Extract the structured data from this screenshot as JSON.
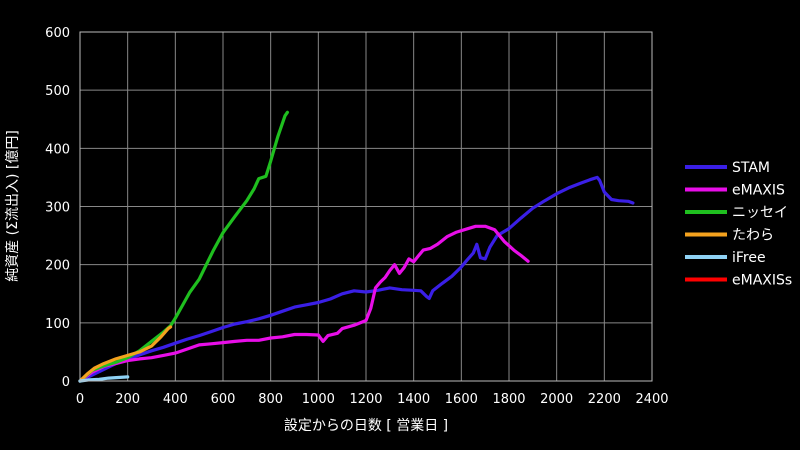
{
  "chart_data": {
    "type": "line",
    "title": "",
    "xlabel": "設定からの日数 [ 営業日 ]",
    "ylabel": "純資産 (Σ流出入) [億円]",
    "xlim": [
      0,
      2400
    ],
    "ylim": [
      0,
      600
    ],
    "xticks": [
      0,
      200,
      400,
      600,
      800,
      1000,
      1200,
      1400,
      1600,
      1800,
      2000,
      2200,
      2400
    ],
    "yticks": [
      0,
      100,
      200,
      300,
      400,
      500,
      600
    ],
    "grid": true,
    "legend_position": "right",
    "series": [
      {
        "name": "STAM",
        "color": "#3a1fe6",
        "points": [
          [
            0,
            0
          ],
          [
            50,
            10
          ],
          [
            100,
            20
          ],
          [
            150,
            30
          ],
          [
            200,
            38
          ],
          [
            250,
            45
          ],
          [
            300,
            52
          ],
          [
            350,
            58
          ],
          [
            400,
            65
          ],
          [
            450,
            72
          ],
          [
            500,
            78
          ],
          [
            550,
            85
          ],
          [
            600,
            92
          ],
          [
            650,
            98
          ],
          [
            700,
            102
          ],
          [
            750,
            107
          ],
          [
            800,
            113
          ],
          [
            850,
            120
          ],
          [
            900,
            127
          ],
          [
            950,
            131
          ],
          [
            1000,
            135
          ],
          [
            1050,
            141
          ],
          [
            1100,
            150
          ],
          [
            1150,
            155
          ],
          [
            1200,
            153
          ],
          [
            1250,
            156
          ],
          [
            1300,
            160
          ],
          [
            1350,
            157
          ],
          [
            1400,
            156
          ],
          [
            1430,
            155
          ],
          [
            1455,
            145
          ],
          [
            1465,
            142
          ],
          [
            1480,
            155
          ],
          [
            1520,
            168
          ],
          [
            1560,
            180
          ],
          [
            1600,
            196
          ],
          [
            1620,
            206
          ],
          [
            1650,
            220
          ],
          [
            1665,
            235
          ],
          [
            1680,
            212
          ],
          [
            1700,
            210
          ],
          [
            1720,
            230
          ],
          [
            1750,
            250
          ],
          [
            1800,
            262
          ],
          [
            1850,
            280
          ],
          [
            1900,
            297
          ],
          [
            1950,
            310
          ],
          [
            2000,
            322
          ],
          [
            2050,
            332
          ],
          [
            2100,
            340
          ],
          [
            2140,
            346
          ],
          [
            2170,
            350
          ],
          [
            2180,
            345
          ],
          [
            2200,
            325
          ],
          [
            2230,
            312
          ],
          [
            2260,
            310
          ],
          [
            2300,
            309
          ],
          [
            2320,
            306
          ]
        ]
      },
      {
        "name": "eMAXIS",
        "color": "#e80ee8",
        "points": [
          [
            0,
            0
          ],
          [
            50,
            15
          ],
          [
            100,
            25
          ],
          [
            150,
            30
          ],
          [
            200,
            35
          ],
          [
            250,
            38
          ],
          [
            300,
            40
          ],
          [
            350,
            44
          ],
          [
            400,
            48
          ],
          [
            450,
            55
          ],
          [
            500,
            62
          ],
          [
            550,
            64
          ],
          [
            600,
            66
          ],
          [
            650,
            68
          ],
          [
            700,
            70
          ],
          [
            750,
            70
          ],
          [
            800,
            74
          ],
          [
            850,
            76
          ],
          [
            900,
            80
          ],
          [
            950,
            80
          ],
          [
            1000,
            79
          ],
          [
            1020,
            68
          ],
          [
            1040,
            78
          ],
          [
            1080,
            82
          ],
          [
            1100,
            90
          ],
          [
            1150,
            96
          ],
          [
            1200,
            104
          ],
          [
            1220,
            125
          ],
          [
            1240,
            160
          ],
          [
            1260,
            170
          ],
          [
            1280,
            178
          ],
          [
            1300,
            190
          ],
          [
            1320,
            200
          ],
          [
            1340,
            185
          ],
          [
            1360,
            195
          ],
          [
            1380,
            210
          ],
          [
            1400,
            205
          ],
          [
            1420,
            215
          ],
          [
            1440,
            225
          ],
          [
            1470,
            228
          ],
          [
            1500,
            235
          ],
          [
            1540,
            248
          ],
          [
            1580,
            256
          ],
          [
            1620,
            261
          ],
          [
            1660,
            266
          ],
          [
            1700,
            266
          ],
          [
            1740,
            260
          ],
          [
            1780,
            240
          ],
          [
            1820,
            225
          ],
          [
            1850,
            216
          ],
          [
            1880,
            206
          ]
        ]
      },
      {
        "name": "ニッセイ",
        "color": "#1fbf1f",
        "points": [
          [
            0,
            0
          ],
          [
            50,
            18
          ],
          [
            100,
            26
          ],
          [
            150,
            32
          ],
          [
            200,
            40
          ],
          [
            250,
            52
          ],
          [
            300,
            68
          ],
          [
            350,
            84
          ],
          [
            380,
            95
          ],
          [
            400,
            108
          ],
          [
            430,
            130
          ],
          [
            460,
            152
          ],
          [
            500,
            175
          ],
          [
            530,
            200
          ],
          [
            560,
            225
          ],
          [
            600,
            255
          ],
          [
            650,
            283
          ],
          [
            700,
            310
          ],
          [
            730,
            330
          ],
          [
            750,
            348
          ],
          [
            780,
            352
          ],
          [
            800,
            378
          ],
          [
            830,
            420
          ],
          [
            860,
            456
          ],
          [
            870,
            462
          ]
        ]
      },
      {
        "name": "たわら",
        "color": "#f4a21e",
        "points": [
          [
            0,
            0
          ],
          [
            30,
            12
          ],
          [
            60,
            22
          ],
          [
            100,
            30
          ],
          [
            150,
            38
          ],
          [
            200,
            44
          ],
          [
            250,
            50
          ],
          [
            300,
            60
          ],
          [
            340,
            76
          ],
          [
            370,
            90
          ],
          [
            380,
            93
          ]
        ]
      },
      {
        "name": "iFree",
        "color": "#8fd2f5",
        "points": [
          [
            0,
            0
          ],
          [
            40,
            2
          ],
          [
            80,
            3
          ],
          [
            120,
            5
          ],
          [
            160,
            6
          ],
          [
            200,
            7
          ]
        ]
      },
      {
        "name": "eMAXISs",
        "color": "#ff0000",
        "points": []
      }
    ]
  }
}
